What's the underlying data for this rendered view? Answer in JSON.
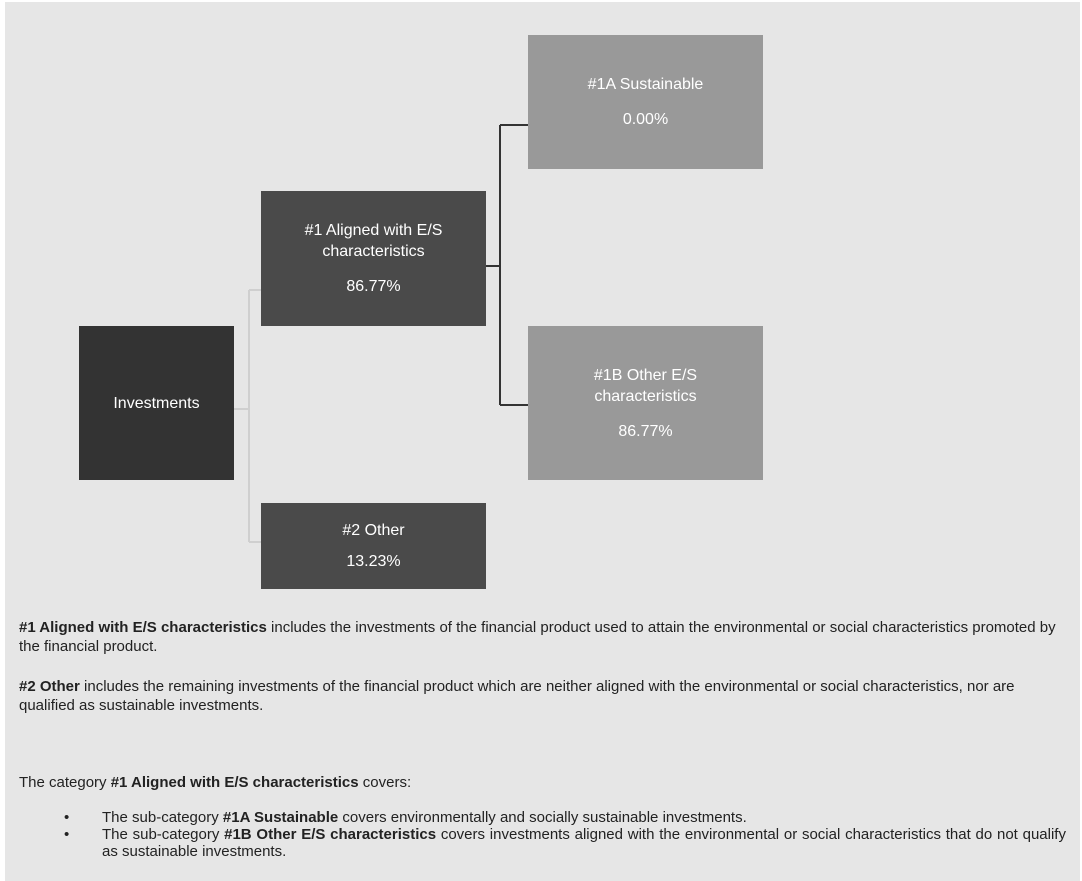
{
  "diagram": {
    "investments": {
      "label": "Investments"
    },
    "aligned": {
      "label": "#1 Aligned with E/S\ncharacteristics",
      "value": "86.77%"
    },
    "other": {
      "label": "#2 Other",
      "value": "13.23%"
    },
    "sustainable": {
      "label": "#1A Sustainable",
      "value": "0.00%"
    },
    "other_es": {
      "label": "#1B Other E/S\ncharacteristics",
      "value": "86.77%"
    }
  },
  "definitions": {
    "p1_bold": "#1 Aligned with E/S characteristics",
    "p1_rest": " includes the investments of the financial product used to attain the environmental or social characteristics promoted by the financial product.",
    "p2_bold": "#2 Other",
    "p2_rest": " includes the remaining investments of the financial product which are neither aligned with the environmental or social characteristics, nor are qualified as sustainable investments.",
    "p3_pre": "The category ",
    "p3_bold": "#1 Aligned with E/S characteristics",
    "p3_post": " covers:",
    "bullet_symbol": "•",
    "bullets": [
      {
        "pre": "The sub-category ",
        "bold": "#1A Sustainable",
        "post": " covers environmentally and socially sustainable investments."
      },
      {
        "pre": "The sub-category ",
        "bold": "#1B Other E/S characteristics",
        "post": " covers investments aligned with the environmental or social characteristics that do not qualify as sustainable investments."
      }
    ]
  }
}
